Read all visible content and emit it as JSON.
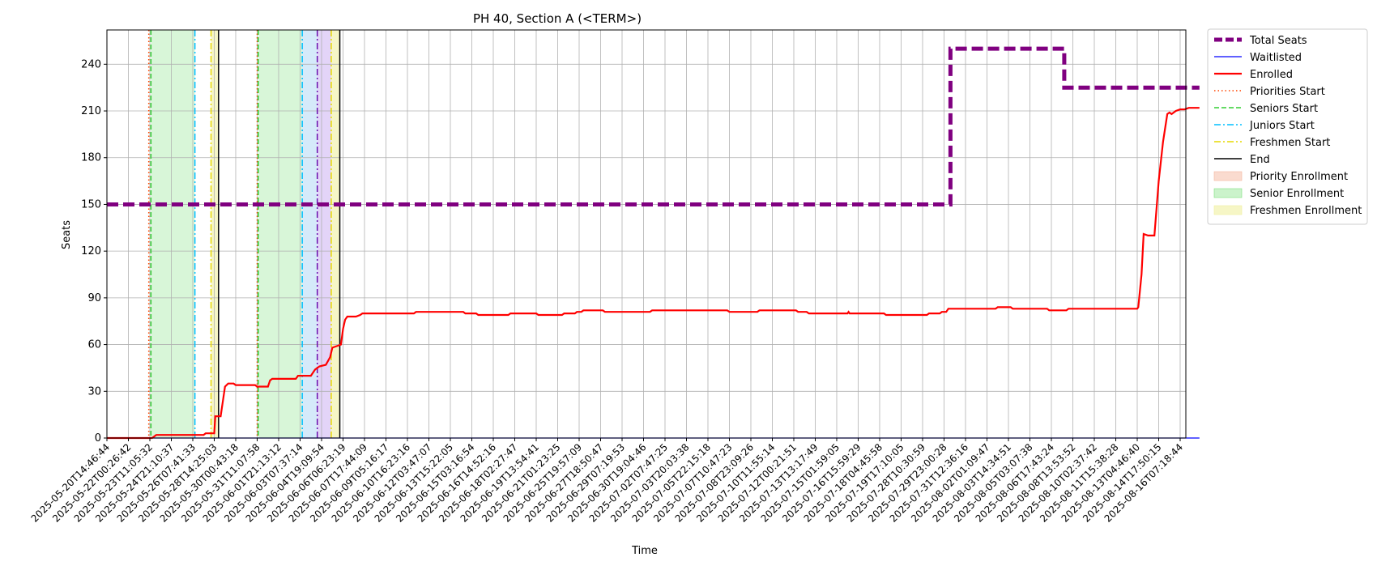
{
  "chart_data": {
    "type": "line",
    "title": "PH 40, Section A (<TERM>)",
    "xlabel": "Time",
    "ylabel": "Seats",
    "x_range": [
      "2025-05-20T14:46:44",
      "2025-08-16T13:00:00"
    ],
    "ylim": [
      0,
      262
    ],
    "yticks": [
      0,
      30,
      60,
      90,
      120,
      150,
      180,
      210,
      240
    ],
    "grid": true,
    "legend_position": "outside-right-top",
    "x_tick_labels": [
      "2025-05-20T14:46:44",
      "2025-05-22T00:26:42",
      "2025-05-23T11:05:32",
      "2025-05-24T21:10:37",
      "2025-05-26T07:41:33",
      "2025-05-28T14:25:03",
      "2025-05-30T00:43:18",
      "2025-05-31T11:07:58",
      "2025-06-01T21:13:12",
      "2025-06-03T07:37:14",
      "2025-06-04T19:09:54",
      "2025-06-06T06:23:19",
      "2025-06-07T17:44:09",
      "2025-06-09T05:16:17",
      "2025-06-10T16:23:16",
      "2025-06-12T03:47:07",
      "2025-06-13T15:22:05",
      "2025-06-15T03:16:54",
      "2025-06-16T14:52:16",
      "2025-06-18T02:27:47",
      "2025-06-19T13:54:41",
      "2025-06-21T01:23:25",
      "2025-06-25T19:57:09",
      "2025-06-27T18:50:47",
      "2025-06-29T07:19:53",
      "2025-06-30T19:04:46",
      "2025-07-02T07:47:25",
      "2025-07-03T20:03:38",
      "2025-07-05T22:15:18",
      "2025-07-07T10:47:23",
      "2025-07-08T23:09:26",
      "2025-07-10T11:55:14",
      "2025-07-12T00:21:51",
      "2025-07-13T13:17:49",
      "2025-07-15T01:59:05",
      "2025-07-16T15:59:29",
      "2025-07-18T04:45:58",
      "2025-07-19T17:10:05",
      "2025-07-28T10:30:59",
      "2025-07-29T23:00:28",
      "2025-07-31T12:36:16",
      "2025-08-02T01:09:47",
      "2025-08-03T14:34:51",
      "2025-08-05T03:07:38",
      "2025-08-06T17:43:24",
      "2025-08-08T13:53:52",
      "2025-08-10T02:37:42",
      "2025-08-11T15:38:28",
      "2025-08-13T04:46:40",
      "2025-08-14T17:50:15",
      "2025-08-16T07:18:44"
    ],
    "series": [
      {
        "name": "Total Seats",
        "color": "#800080",
        "style": "dashed",
        "step": true,
        "points": [
          [
            0,
            150
          ],
          [
            39.3,
            150
          ],
          [
            39.3,
            250
          ],
          [
            44.6,
            250
          ],
          [
            44.6,
            225
          ],
          [
            50.9,
            225
          ]
        ]
      },
      {
        "name": "Waitlisted",
        "color": "#0000ff",
        "style": "solid",
        "points": [
          [
            0,
            0
          ],
          [
            50.9,
            0
          ]
        ]
      },
      {
        "name": "Enrolled",
        "color": "#ff0000",
        "style": "solid",
        "points": [
          [
            0,
            0
          ],
          [
            2.1,
            0
          ],
          [
            2.3,
            2
          ],
          [
            4.5,
            2
          ],
          [
            4.6,
            3
          ],
          [
            5.0,
            3
          ],
          [
            5.05,
            14
          ],
          [
            5.3,
            14
          ],
          [
            5.5,
            33
          ],
          [
            5.65,
            35
          ],
          [
            5.9,
            35
          ],
          [
            6.0,
            34
          ],
          [
            6.9,
            34
          ],
          [
            7.0,
            33
          ],
          [
            7.5,
            33
          ],
          [
            7.6,
            37
          ],
          [
            7.7,
            38
          ],
          [
            8.8,
            38
          ],
          [
            8.9,
            40
          ],
          [
            9.5,
            40
          ],
          [
            9.7,
            44
          ],
          [
            9.9,
            46
          ],
          [
            10.2,
            47
          ],
          [
            10.4,
            52
          ],
          [
            10.5,
            58
          ],
          [
            10.9,
            60
          ],
          [
            11.0,
            70
          ],
          [
            11.1,
            76
          ],
          [
            11.2,
            78
          ],
          [
            11.6,
            78
          ],
          [
            11.8,
            79
          ],
          [
            11.9,
            80
          ],
          [
            14.3,
            80
          ],
          [
            14.4,
            81
          ],
          [
            16.6,
            81
          ],
          [
            16.7,
            80
          ],
          [
            17.2,
            80
          ],
          [
            17.3,
            79
          ],
          [
            18.7,
            79
          ],
          [
            18.8,
            80
          ],
          [
            20.0,
            80
          ],
          [
            20.1,
            79
          ],
          [
            21.2,
            79
          ],
          [
            21.3,
            80
          ],
          [
            21.8,
            80
          ],
          [
            21.9,
            81
          ],
          [
            22.1,
            81
          ],
          [
            22.2,
            82
          ],
          [
            23.1,
            82
          ],
          [
            23.2,
            81
          ],
          [
            25.3,
            81
          ],
          [
            25.4,
            82
          ],
          [
            28.9,
            82
          ],
          [
            29.0,
            81
          ],
          [
            30.3,
            81
          ],
          [
            30.4,
            82
          ],
          [
            32.1,
            82
          ],
          [
            32.2,
            81
          ],
          [
            32.6,
            81
          ],
          [
            32.7,
            80
          ],
          [
            34.5,
            80
          ],
          [
            34.55,
            81
          ],
          [
            34.6,
            80
          ],
          [
            36.2,
            80
          ],
          [
            36.3,
            79
          ],
          [
            38.2,
            79
          ],
          [
            38.3,
            80
          ],
          [
            38.8,
            80
          ],
          [
            38.9,
            81
          ],
          [
            39.1,
            81
          ],
          [
            39.2,
            83
          ],
          [
            41.4,
            83
          ],
          [
            41.5,
            84
          ],
          [
            42.1,
            84
          ],
          [
            42.2,
            83
          ],
          [
            43.8,
            83
          ],
          [
            43.9,
            82
          ],
          [
            44.7,
            82
          ],
          [
            44.8,
            83
          ],
          [
            48.0,
            83
          ],
          [
            48.05,
            84
          ],
          [
            48.2,
            105
          ],
          [
            48.3,
            131
          ],
          [
            48.5,
            130
          ],
          [
            48.8,
            130
          ],
          [
            49.0,
            165
          ],
          [
            49.2,
            190
          ],
          [
            49.4,
            208
          ],
          [
            49.5,
            209
          ],
          [
            49.6,
            208
          ],
          [
            49.8,
            210
          ],
          [
            50.0,
            211
          ],
          [
            50.2,
            211
          ],
          [
            50.4,
            212
          ],
          [
            50.9,
            212
          ]
        ]
      }
    ],
    "vlines": [
      {
        "x": 1.95,
        "kind": "Priorities Start"
      },
      {
        "x": 2.05,
        "kind": "Seniors Start"
      },
      {
        "x": 4.1,
        "kind": "Juniors Start"
      },
      {
        "x": 4.85,
        "kind": "Freshmen Start"
      },
      {
        "x": 5.2,
        "kind": "End"
      },
      {
        "x": 7.0,
        "kind": "Priorities Start"
      },
      {
        "x": 7.05,
        "kind": "Seniors Start"
      },
      {
        "x": 9.1,
        "kind": "Juniors Start"
      },
      {
        "x": 9.8,
        "kind": "Sophomores Start"
      },
      {
        "x": 10.45,
        "kind": "Freshmen Start"
      },
      {
        "x": 10.85,
        "kind": "End"
      }
    ],
    "spans": [
      {
        "x0": 2.05,
        "x1": 4.1,
        "kind": "Senior Enrollment"
      },
      {
        "x0": 4.85,
        "x1": 5.2,
        "kind": "Freshmen Enrollment"
      },
      {
        "x0": 7.05,
        "x1": 9.1,
        "kind": "Senior Enrollment"
      },
      {
        "x0": 9.1,
        "x1": 9.8,
        "kind": "Junior Enrollment"
      },
      {
        "x0": 9.8,
        "x1": 10.45,
        "kind": "Sophomore Enrollment"
      },
      {
        "x0": 10.45,
        "x1": 10.85,
        "kind": "Freshmen Enrollment"
      }
    ],
    "styles": {
      "Priorities Start": {
        "color": "#ff4500",
        "dash": "1.5,3"
      },
      "Seniors Start": {
        "color": "#32cd32",
        "dash": "6,3"
      },
      "Juniors Start": {
        "color": "#00bfff",
        "dash": "8,3,2,3"
      },
      "Sophomores Start": {
        "color": "#6a0dad",
        "dash": "8,3,2,3"
      },
      "Freshmen Start": {
        "color": "#e6d800",
        "dash": "8,3,2,3"
      },
      "End": {
        "color": "#000000",
        "dash": ""
      },
      "Priority Enrollment": {
        "color": "#f5b7a0",
        "opacity": 0.45
      },
      "Senior Enrollment": {
        "color": "#7ee07e",
        "opacity": 0.3
      },
      "Junior Enrollment": {
        "color": "#87c4f0",
        "opacity": 0.35
      },
      "Sophomore Enrollment": {
        "color": "#c2a0f0",
        "opacity": 0.45
      },
      "Freshmen Enrollment": {
        "color": "#f0f0a0",
        "opacity": 0.6
      }
    },
    "legend": [
      {
        "label": "Total Seats",
        "type": "line",
        "color": "#800080",
        "dash": "10,4",
        "width": 5
      },
      {
        "label": "Waitlisted",
        "type": "line",
        "color": "#0000ff",
        "dash": "",
        "width": 1.2
      },
      {
        "label": "Enrolled",
        "type": "line",
        "color": "#ff0000",
        "dash": "",
        "width": 2.2
      },
      {
        "label": "Priorities Start",
        "type": "line",
        "color": "#ff4500",
        "dash": "1.5,3",
        "width": 1.5
      },
      {
        "label": "Seniors Start",
        "type": "line",
        "color": "#32cd32",
        "dash": "6,3",
        "width": 1.5
      },
      {
        "label": "Juniors Start",
        "type": "line",
        "color": "#00bfff",
        "dash": "8,3,2,3",
        "width": 1.5
      },
      {
        "label": "Freshmen Start",
        "type": "line",
        "color": "#e6d800",
        "dash": "8,3,2,3",
        "width": 1.5
      },
      {
        "label": "End",
        "type": "line",
        "color": "#000000",
        "dash": "",
        "width": 1.5
      },
      {
        "label": "Priority Enrollment",
        "type": "patch",
        "color": "#f5b7a0",
        "opacity": 0.5
      },
      {
        "label": "Senior Enrollment",
        "type": "patch",
        "color": "#7ee07e",
        "opacity": 0.4
      },
      {
        "label": "Freshmen Enrollment",
        "type": "patch",
        "color": "#f0f0a0",
        "opacity": 0.6
      }
    ]
  }
}
